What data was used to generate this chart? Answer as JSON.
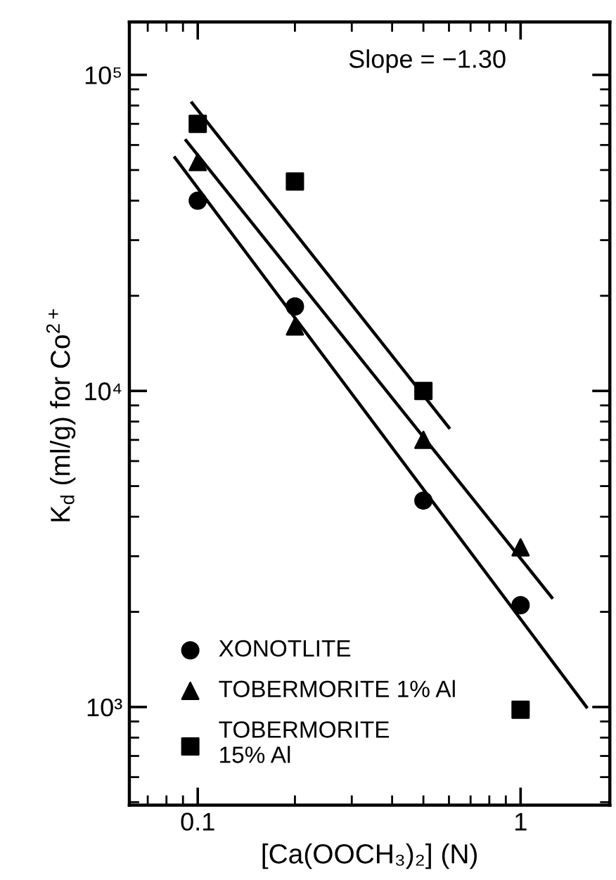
{
  "chart_data": {
    "type": "scatter",
    "xlabel": "[Ca(OOCH₃)₂] (N)",
    "ylabel": "K$_{d}$ (ml/g) for Co$^{2+}$",
    "log": "xy",
    "xlim": [
      0.0614,
      1.89
    ],
    "ylim": [
      489,
      147000
    ],
    "xticks": [
      0.1,
      1
    ],
    "yticks": [
      {
        "value": 1000,
        "label": "10³"
      },
      {
        "value": 10000,
        "label": "10⁴"
      },
      {
        "value": 100000,
        "label": "10⁵"
      }
    ],
    "grid": false,
    "legend": "bottom left",
    "annotations": [
      "Slope = −1.30"
    ],
    "series": [
      {
        "name": "XONOTLITE",
        "color": "#000000",
        "marker": "circle",
        "x": [
          0.1,
          0.2,
          0.5,
          1
        ],
        "values": [
          40000,
          18500,
          4500,
          2100
        ]
      },
      {
        "name": "TOBERMORITE 1% Al",
        "color": "#000000",
        "marker": "triangle",
        "x": [
          0.1,
          0.2,
          0.5,
          1
        ],
        "values": [
          53000,
          16000,
          7000,
          3200
        ]
      },
      {
        "name": "TOBERMORITE\n15% Al",
        "color": "#000000",
        "marker": "square",
        "x": [
          0.1,
          0.2,
          0.5,
          1
        ],
        "values": [
          70000,
          46000,
          10000,
          980
        ]
      },
      {
        "type": "line",
        "color": "#000000",
        "marker": "none",
        "line_style": "solid",
        "x": [
          0.085,
          1.6
        ],
        "values": [
          54700,
          1000
        ]
      },
      {
        "type": "line",
        "color": "#000000",
        "marker": "none",
        "line_style": "solid",
        "x": [
          0.092,
          1.25
        ],
        "values": [
          62000,
          2220
        ]
      },
      {
        "type": "line",
        "color": "#000000",
        "marker": "none",
        "line_style": "solid",
        "x": [
          0.096,
          0.6
        ],
        "values": [
          81500,
          7660
        ]
      }
    ]
  }
}
